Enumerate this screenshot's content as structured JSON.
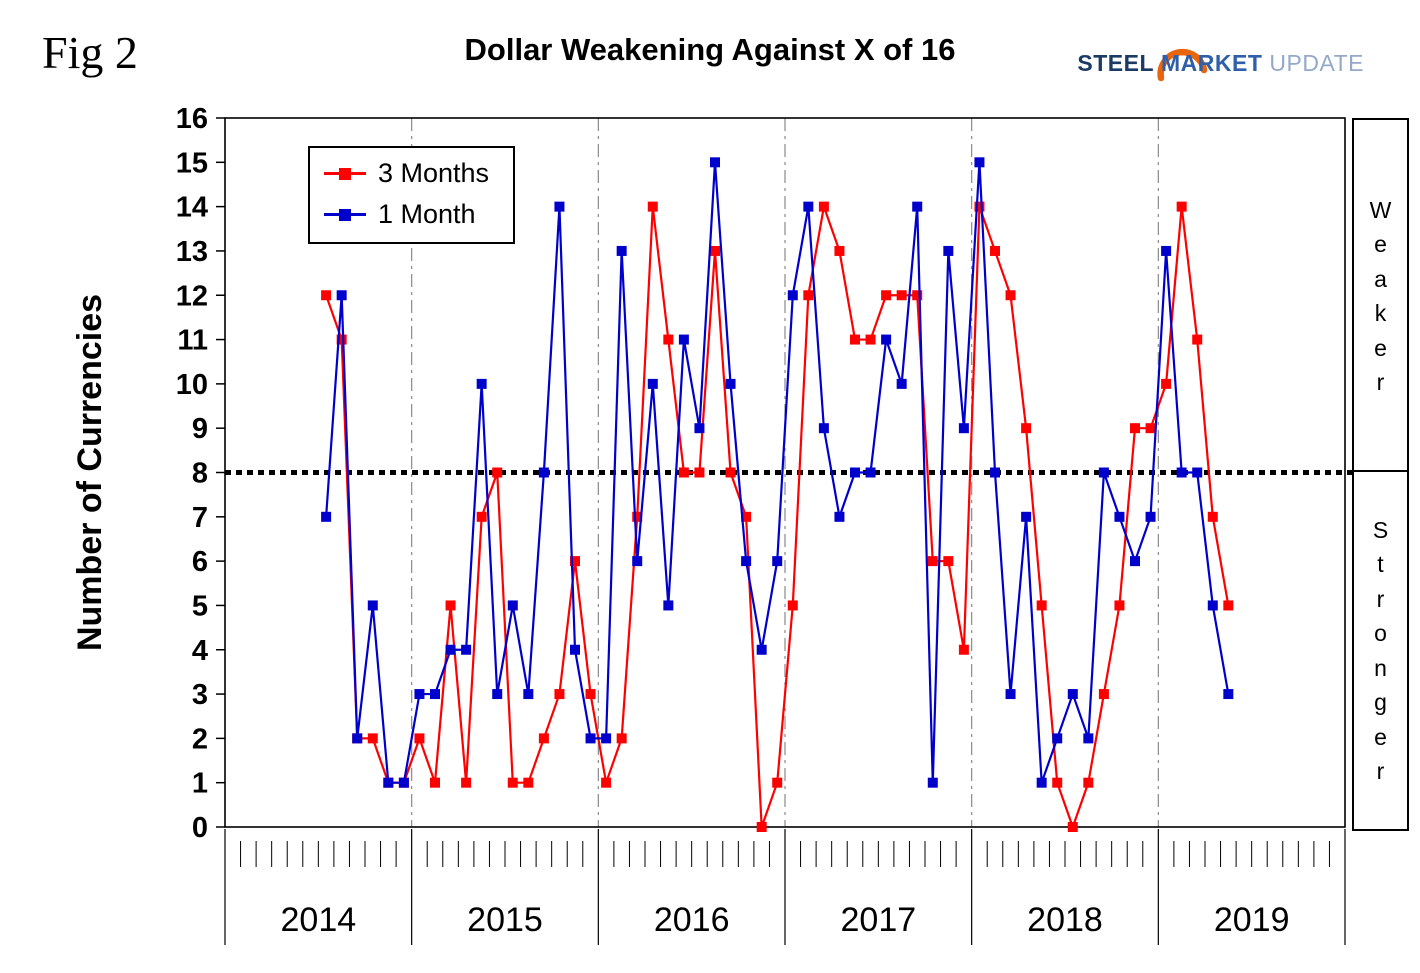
{
  "figure_label": "Fig 2",
  "title": "Dollar Weakening Against X of 16",
  "logo": {
    "steel": "STEEL",
    "market": "MARKET",
    "update": "UPDATE"
  },
  "y_axis_label": "Number of Currencies",
  "side_labels": {
    "weaker": "Weaker",
    "stronger": "Stronger"
  },
  "legend": [
    {
      "name": "3 Months",
      "color": "#ff0000"
    },
    {
      "name": "1 Month",
      "color": "#0000cd"
    }
  ],
  "chart_data": {
    "type": "line",
    "title": "Dollar Weakening Against X of 16",
    "ylabel": "Number of Currencies",
    "ylim": [
      0,
      16
    ],
    "y_tick_step": 1,
    "x_axis_years": [
      "2014",
      "2015",
      "2016",
      "2017",
      "2018",
      "2019"
    ],
    "start_month": "2014-07",
    "start_offset_months": 6,
    "reference_line": 8,
    "zone_above_reference": "Weaker",
    "zone_below_reference": "Stronger",
    "grid": "vertical dash-dot lines at year boundaries",
    "legend_position": "top-left-inside",
    "series": [
      {
        "name": "3 Months",
        "color": "#ff0000",
        "marker": "square",
        "values": [
          12,
          11,
          2,
          2,
          1,
          1,
          2,
          1,
          5,
          1,
          7,
          8,
          1,
          1,
          2,
          3,
          6,
          3,
          1,
          2,
          7,
          14,
          11,
          8,
          8,
          13,
          8,
          7,
          0,
          1,
          5,
          12,
          14,
          13,
          11,
          11,
          12,
          12,
          12,
          6,
          6,
          4,
          14,
          13,
          12,
          9,
          5,
          1,
          0,
          1,
          3,
          5,
          9,
          9,
          10,
          14,
          11,
          7,
          5
        ]
      },
      {
        "name": "1 Month",
        "color": "#0000cd",
        "marker": "square",
        "values": [
          7,
          12,
          2,
          5,
          1,
          1,
          3,
          3,
          4,
          4,
          10,
          3,
          5,
          3,
          8,
          14,
          4,
          2,
          2,
          13,
          6,
          10,
          5,
          11,
          9,
          15,
          10,
          6,
          4,
          6,
          12,
          14,
          9,
          7,
          8,
          8,
          11,
          10,
          14,
          1,
          13,
          9,
          15,
          8,
          3,
          7,
          1,
          2,
          3,
          2,
          8,
          7,
          6,
          7,
          13,
          8,
          8,
          5,
          3
        ]
      }
    ]
  }
}
